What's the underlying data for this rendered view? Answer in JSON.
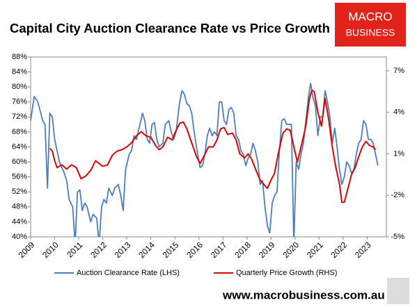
{
  "chart_data": {
    "type": "line",
    "title": "Capital City Auction Clearance Rate vs Price Growth",
    "logo": [
      "MACRO",
      "BUSINESS"
    ],
    "footer": "www.macrobusiness.com.au",
    "legend": "bottom",
    "grid": false,
    "xlim": [
      2009,
      2023.8
    ],
    "xticks": [
      2009,
      2010,
      2011,
      2012,
      2013,
      2014,
      2015,
      2016,
      2017,
      2018,
      2019,
      2020,
      2021,
      2022,
      2023
    ],
    "ylim": [
      40,
      88
    ],
    "yticks": [
      {
        "value": 40,
        "label": "40%"
      },
      {
        "value": 44,
        "label": "44%"
      },
      {
        "value": 48,
        "label": "48%"
      },
      {
        "value": 52,
        "label": "52%"
      },
      {
        "value": 56,
        "label": "56%"
      },
      {
        "value": 60,
        "label": "60%"
      },
      {
        "value": 64,
        "label": "64%"
      },
      {
        "value": 68,
        "label": "68%"
      },
      {
        "value": 72,
        "label": "72%"
      },
      {
        "value": 76,
        "label": "76%"
      },
      {
        "value": 80,
        "label": "80%"
      },
      {
        "value": 84,
        "label": "84%"
      },
      {
        "value": 88,
        "label": "88%"
      }
    ],
    "y2lim": [
      -5,
      8
    ],
    "y2ticks": [
      {
        "value": -5,
        "label": "-5%"
      },
      {
        "value": -2,
        "label": "-2%"
      },
      {
        "value": 1,
        "label": "1%"
      },
      {
        "value": 4,
        "label": "4%"
      },
      {
        "value": 7,
        "label": "7%"
      }
    ],
    "series": [
      {
        "name": "Auction Clearance Rate (LHS)",
        "color": "#4a7ebb",
        "axis": "y",
        "x": [
          2009.0,
          2009.15,
          2009.3,
          2009.5,
          2009.6,
          2009.7,
          2009.8,
          2009.9,
          2010.0,
          2010.2,
          2010.4,
          2010.5,
          2010.6,
          2010.75,
          2010.85,
          2010.95,
          2011.05,
          2011.15,
          2011.25,
          2011.35,
          2011.5,
          2011.6,
          2011.75,
          2011.85,
          2011.95,
          2012.05,
          2012.15,
          2012.25,
          2012.4,
          2012.5,
          2012.65,
          2012.75,
          2012.85,
          2012.95,
          2013.1,
          2013.2,
          2013.3,
          2013.4,
          2013.55,
          2013.65,
          2013.75,
          2013.85,
          2013.95,
          2014.05,
          2014.15,
          2014.25,
          2014.35,
          2014.5,
          2014.6,
          2014.75,
          2014.85,
          2014.95,
          2015.05,
          2015.2,
          2015.3,
          2015.4,
          2015.5,
          2015.6,
          2015.7,
          2015.85,
          2015.95,
          2016.05,
          2016.15,
          2016.25,
          2016.35,
          2016.45,
          2016.55,
          2016.65,
          2016.75,
          2016.85,
          2016.95,
          2017.05,
          2017.15,
          2017.25,
          2017.35,
          2017.45,
          2017.55,
          2017.65,
          2017.75,
          2017.85,
          2017.95,
          2018.05,
          2018.15,
          2018.25,
          2018.35,
          2018.45,
          2018.55,
          2018.65,
          2018.75,
          2018.85,
          2018.95,
          2019.05,
          2019.15,
          2019.25,
          2019.35,
          2019.45,
          2019.55,
          2019.65,
          2019.75,
          2019.85,
          2019.95,
          2020.05,
          2020.15,
          2020.25,
          2020.35,
          2020.45,
          2020.55,
          2020.65,
          2020.75,
          2020.85,
          2020.95,
          2021.05,
          2021.15,
          2021.25,
          2021.35,
          2021.45,
          2021.55,
          2021.65,
          2021.75,
          2021.85,
          2021.95,
          2022.05,
          2022.15,
          2022.25,
          2022.35,
          2022.45,
          2022.55,
          2022.65,
          2022.75,
          2022.85,
          2022.95,
          2023.05,
          2023.15,
          2023.25,
          2023.35,
          2023.45
        ],
        "values": [
          71,
          77.5,
          76,
          71,
          70,
          53,
          73,
          72,
          66,
          60,
          57,
          55,
          50,
          48,
          38,
          52,
          52.5,
          47,
          49,
          48,
          44,
          46,
          45,
          38,
          48,
          50,
          49,
          53,
          51,
          53,
          54,
          51,
          47,
          58,
          62,
          63,
          67,
          66,
          70,
          73,
          71,
          66,
          65,
          70,
          70.5,
          66,
          64,
          65,
          70,
          71,
          68,
          66,
          68,
          76,
          79,
          78,
          75.5,
          75,
          73,
          66,
          62,
          58.5,
          59,
          62,
          67,
          69,
          67,
          68,
          67,
          76,
          76,
          71,
          70,
          74,
          74.5,
          73,
          67,
          66,
          63,
          62,
          59,
          61,
          62,
          65,
          63,
          60,
          54,
          55,
          48,
          43,
          41,
          49,
          51,
          52,
          63,
          71,
          71.5,
          70,
          70,
          70,
          38,
          60,
          58,
          62,
          65,
          71,
          77,
          81,
          77,
          75,
          67,
          72,
          72,
          79,
          76,
          72,
          65,
          69,
          64,
          58,
          54,
          56,
          60,
          59,
          57,
          58,
          62,
          65,
          66,
          71,
          70,
          66,
          66,
          65,
          62,
          59
        ]
      },
      {
        "name": "Quarterly Price Growth (RHS)",
        "color": "#e00000",
        "axis": "y2",
        "x": [
          2009.8,
          2009.9,
          2010.0,
          2010.1,
          2010.3,
          2010.5,
          2010.7,
          2010.9,
          2011.1,
          2011.3,
          2011.5,
          2011.7,
          2011.85,
          2012.0,
          2012.2,
          2012.4,
          2012.6,
          2012.8,
          2013.0,
          2013.2,
          2013.4,
          2013.6,
          2013.8,
          2014.0,
          2014.2,
          2014.35,
          2014.5,
          2014.7,
          2014.9,
          2015.0,
          2015.2,
          2015.35,
          2015.5,
          2015.7,
          2015.9,
          2016.05,
          2016.2,
          2016.4,
          2016.6,
          2016.75,
          2016.9,
          2017.05,
          2017.2,
          2017.4,
          2017.55,
          2017.7,
          2017.9,
          2018.05,
          2018.2,
          2018.4,
          2018.55,
          2018.7,
          2018.85,
          2019.0,
          2019.15,
          2019.3,
          2019.5,
          2019.65,
          2019.8,
          2019.95,
          2020.1,
          2020.25,
          2020.45,
          2020.6,
          2020.7,
          2020.8,
          2020.95,
          2021.1,
          2021.25,
          2021.4,
          2021.55,
          2021.7,
          2021.85,
          2021.95,
          2022.05,
          2022.2,
          2022.35,
          2022.5,
          2022.65,
          2022.8,
          2022.95,
          2023.1,
          2023.25,
          2023.35
        ],
        "values": [
          1.4,
          1.2,
          0.5,
          0.0,
          0.2,
          -0.1,
          0.2,
          0.0,
          -0.8,
          -0.6,
          -0.2,
          0.5,
          0.3,
          0.1,
          0.2,
          0.9,
          1.2,
          1.3,
          1.5,
          1.8,
          2.3,
          2.6,
          2.3,
          2.2,
          1.6,
          1.3,
          1.5,
          2.2,
          2.0,
          2.5,
          3.2,
          3.3,
          2.8,
          1.8,
          0.8,
          0.3,
          0.8,
          1.5,
          1.5,
          2.0,
          2.8,
          2.9,
          2.4,
          2.5,
          2.0,
          1.0,
          0.7,
          1.0,
          0.6,
          -0.3,
          -0.9,
          -1.2,
          -1.5,
          -0.9,
          -0.4,
          1.0,
          2.5,
          2.8,
          2.7,
          1.5,
          0.4,
          1.5,
          3.0,
          5.0,
          5.6,
          5.5,
          4.0,
          3.0,
          5.0,
          3.5,
          1.5,
          0.0,
          -1.2,
          -2.5,
          -2.5,
          -1.5,
          -0.5,
          0.0,
          0.8,
          1.5,
          1.9,
          1.6,
          1.5,
          1.3
        ]
      }
    ]
  }
}
